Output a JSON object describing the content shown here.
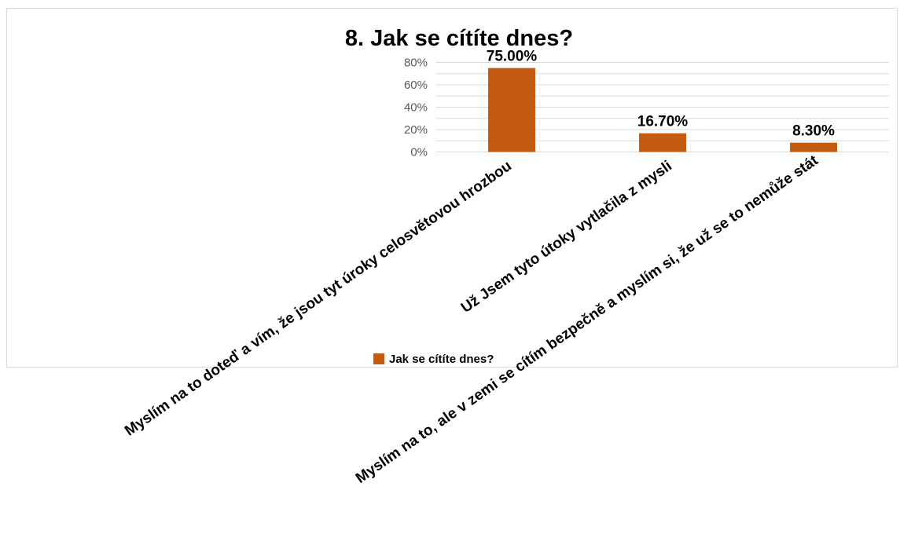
{
  "chart_data": {
    "type": "bar",
    "title": "8. Jak se cítíte dnes?",
    "categories": [
      "Myslím na to doteď a vím, že jsou tyt úroky celosvětovou hrozbou",
      "Už Jsem tyto útoky vytlačila z mysli",
      "Myslím na to, ale v zemi se cítím bezpečně a myslím si, že už se to nemůže stát"
    ],
    "series": [
      {
        "name": "Jak se cítíte dnes?",
        "values": [
          75.0,
          16.7,
          8.3
        ],
        "color": "#c55a11"
      }
    ],
    "data_labels": [
      "75.00%",
      "16.70%",
      "8.30%"
    ],
    "y_ticks": [
      "0%",
      "20%",
      "40%",
      "60%",
      "80%"
    ],
    "ylim": [
      0,
      80
    ],
    "y_unit": "percent",
    "grid": true,
    "legend_position": "bottom"
  }
}
